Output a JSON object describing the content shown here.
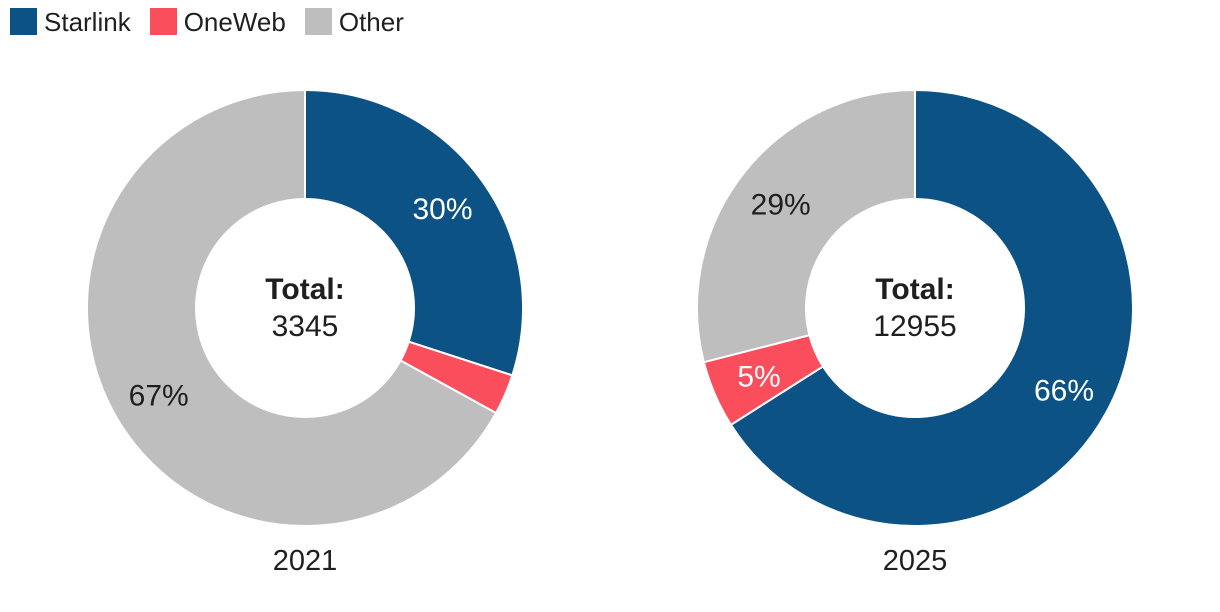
{
  "legend": {
    "items": [
      {
        "label": "Starlink",
        "color": "#0c5285"
      },
      {
        "label": "OneWeb",
        "color": "#fa4e5c"
      },
      {
        "label": "Other",
        "color": "#bebebe"
      }
    ]
  },
  "chart_data": [
    {
      "type": "pie",
      "variant": "donut",
      "title": "2021",
      "total_label": "Total:",
      "total_value": "3345",
      "categories": [
        "Starlink",
        "OneWeb",
        "Other"
      ],
      "values": [
        30,
        3,
        67
      ],
      "slice_labels": [
        "30%",
        "",
        "67%"
      ],
      "slice_label_colors": [
        "#ffffff",
        "",
        "#1f1f1f"
      ],
      "colors": [
        "#0c5285",
        "#fa4e5c",
        "#bebebe"
      ],
      "start_angle_deg": 0,
      "direction": "clockwise",
      "inner_radius_ratio": 0.5,
      "separator_color": "#ffffff",
      "legend_position": "top-left"
    },
    {
      "type": "pie",
      "variant": "donut",
      "title": "2025",
      "total_label": "Total:",
      "total_value": "12955",
      "categories": [
        "Starlink",
        "OneWeb",
        "Other"
      ],
      "values": [
        66,
        5,
        29
      ],
      "slice_labels": [
        "66%",
        "5%",
        "29%"
      ],
      "slice_label_colors": [
        "#ffffff",
        "#ffffff",
        "#1f1f1f"
      ],
      "colors": [
        "#0c5285",
        "#fa4e5c",
        "#bebebe"
      ],
      "start_angle_deg": 0,
      "direction": "clockwise",
      "inner_radius_ratio": 0.5,
      "separator_color": "#ffffff",
      "legend_position": "top-left"
    }
  ]
}
